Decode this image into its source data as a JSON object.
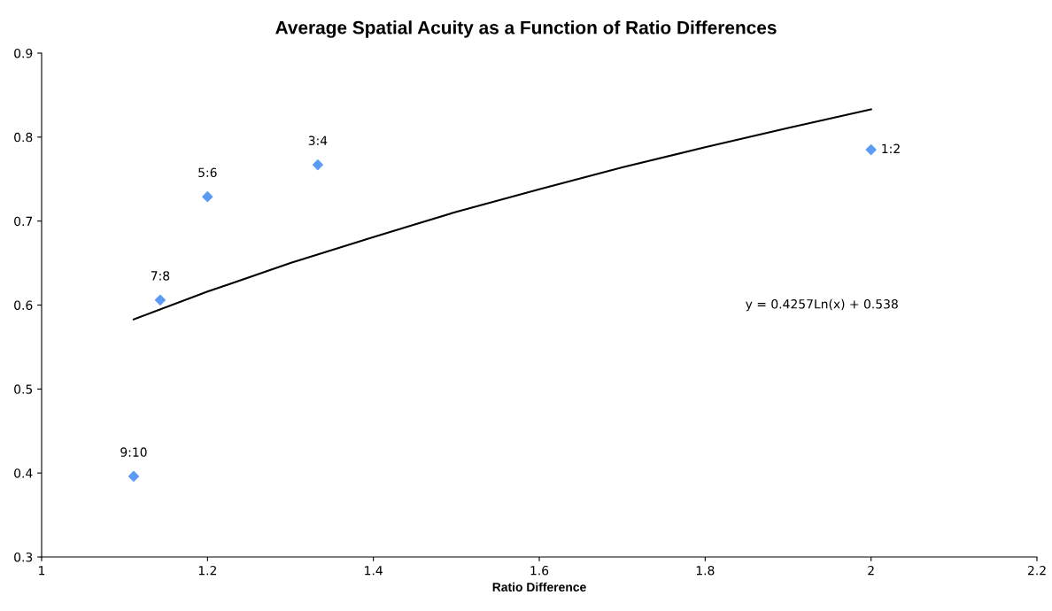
{
  "chart_data": {
    "type": "scatter",
    "title": "Average Spatial Acuity as a Function of Ratio Differences",
    "xlabel": "Ratio Difference",
    "series": [
      {
        "color": "#5b9bf5",
        "marker": "diamond",
        "x": [
          1.111,
          1.143,
          1.2,
          1.333,
          2
        ],
        "values": [
          0.396,
          0.606,
          0.729,
          0.767,
          0.785
        ]
      },
      {
        "type": "line",
        "color": "#000000",
        "x": [
          1.111,
          1.2,
          1.3,
          1.4,
          1.5,
          1.6,
          1.7,
          1.8,
          1.9,
          2
        ],
        "values": [
          0.583,
          0.616,
          0.65,
          0.681,
          0.711,
          0.738,
          0.764,
          0.788,
          0.811,
          0.833
        ]
      }
    ],
    "annotations": [
      {
        "text": "9:10",
        "x": 1.111,
        "y": 0.396
      },
      {
        "text": "7:8",
        "x": 1.143,
        "y": 0.606
      },
      {
        "text": "5:6",
        "x": 1.2,
        "y": 0.729
      },
      {
        "text": "3:4",
        "x": 1.333,
        "y": 0.767
      },
      {
        "text": "1:2",
        "x": 2,
        "y": 0.785
      },
      "y = 0.4257Ln(x) + 0.538"
    ],
    "grid": false,
    "xlim": [
      1,
      2.2
    ],
    "xticks": [
      1,
      1.2,
      1.4,
      1.6,
      1.8,
      2,
      2.2
    ],
    "ylim": [
      0.3,
      0.9
    ],
    "yticks": [
      0.3,
      0.4,
      0.5,
      0.6,
      0.7,
      0.8,
      0.9
    ]
  }
}
